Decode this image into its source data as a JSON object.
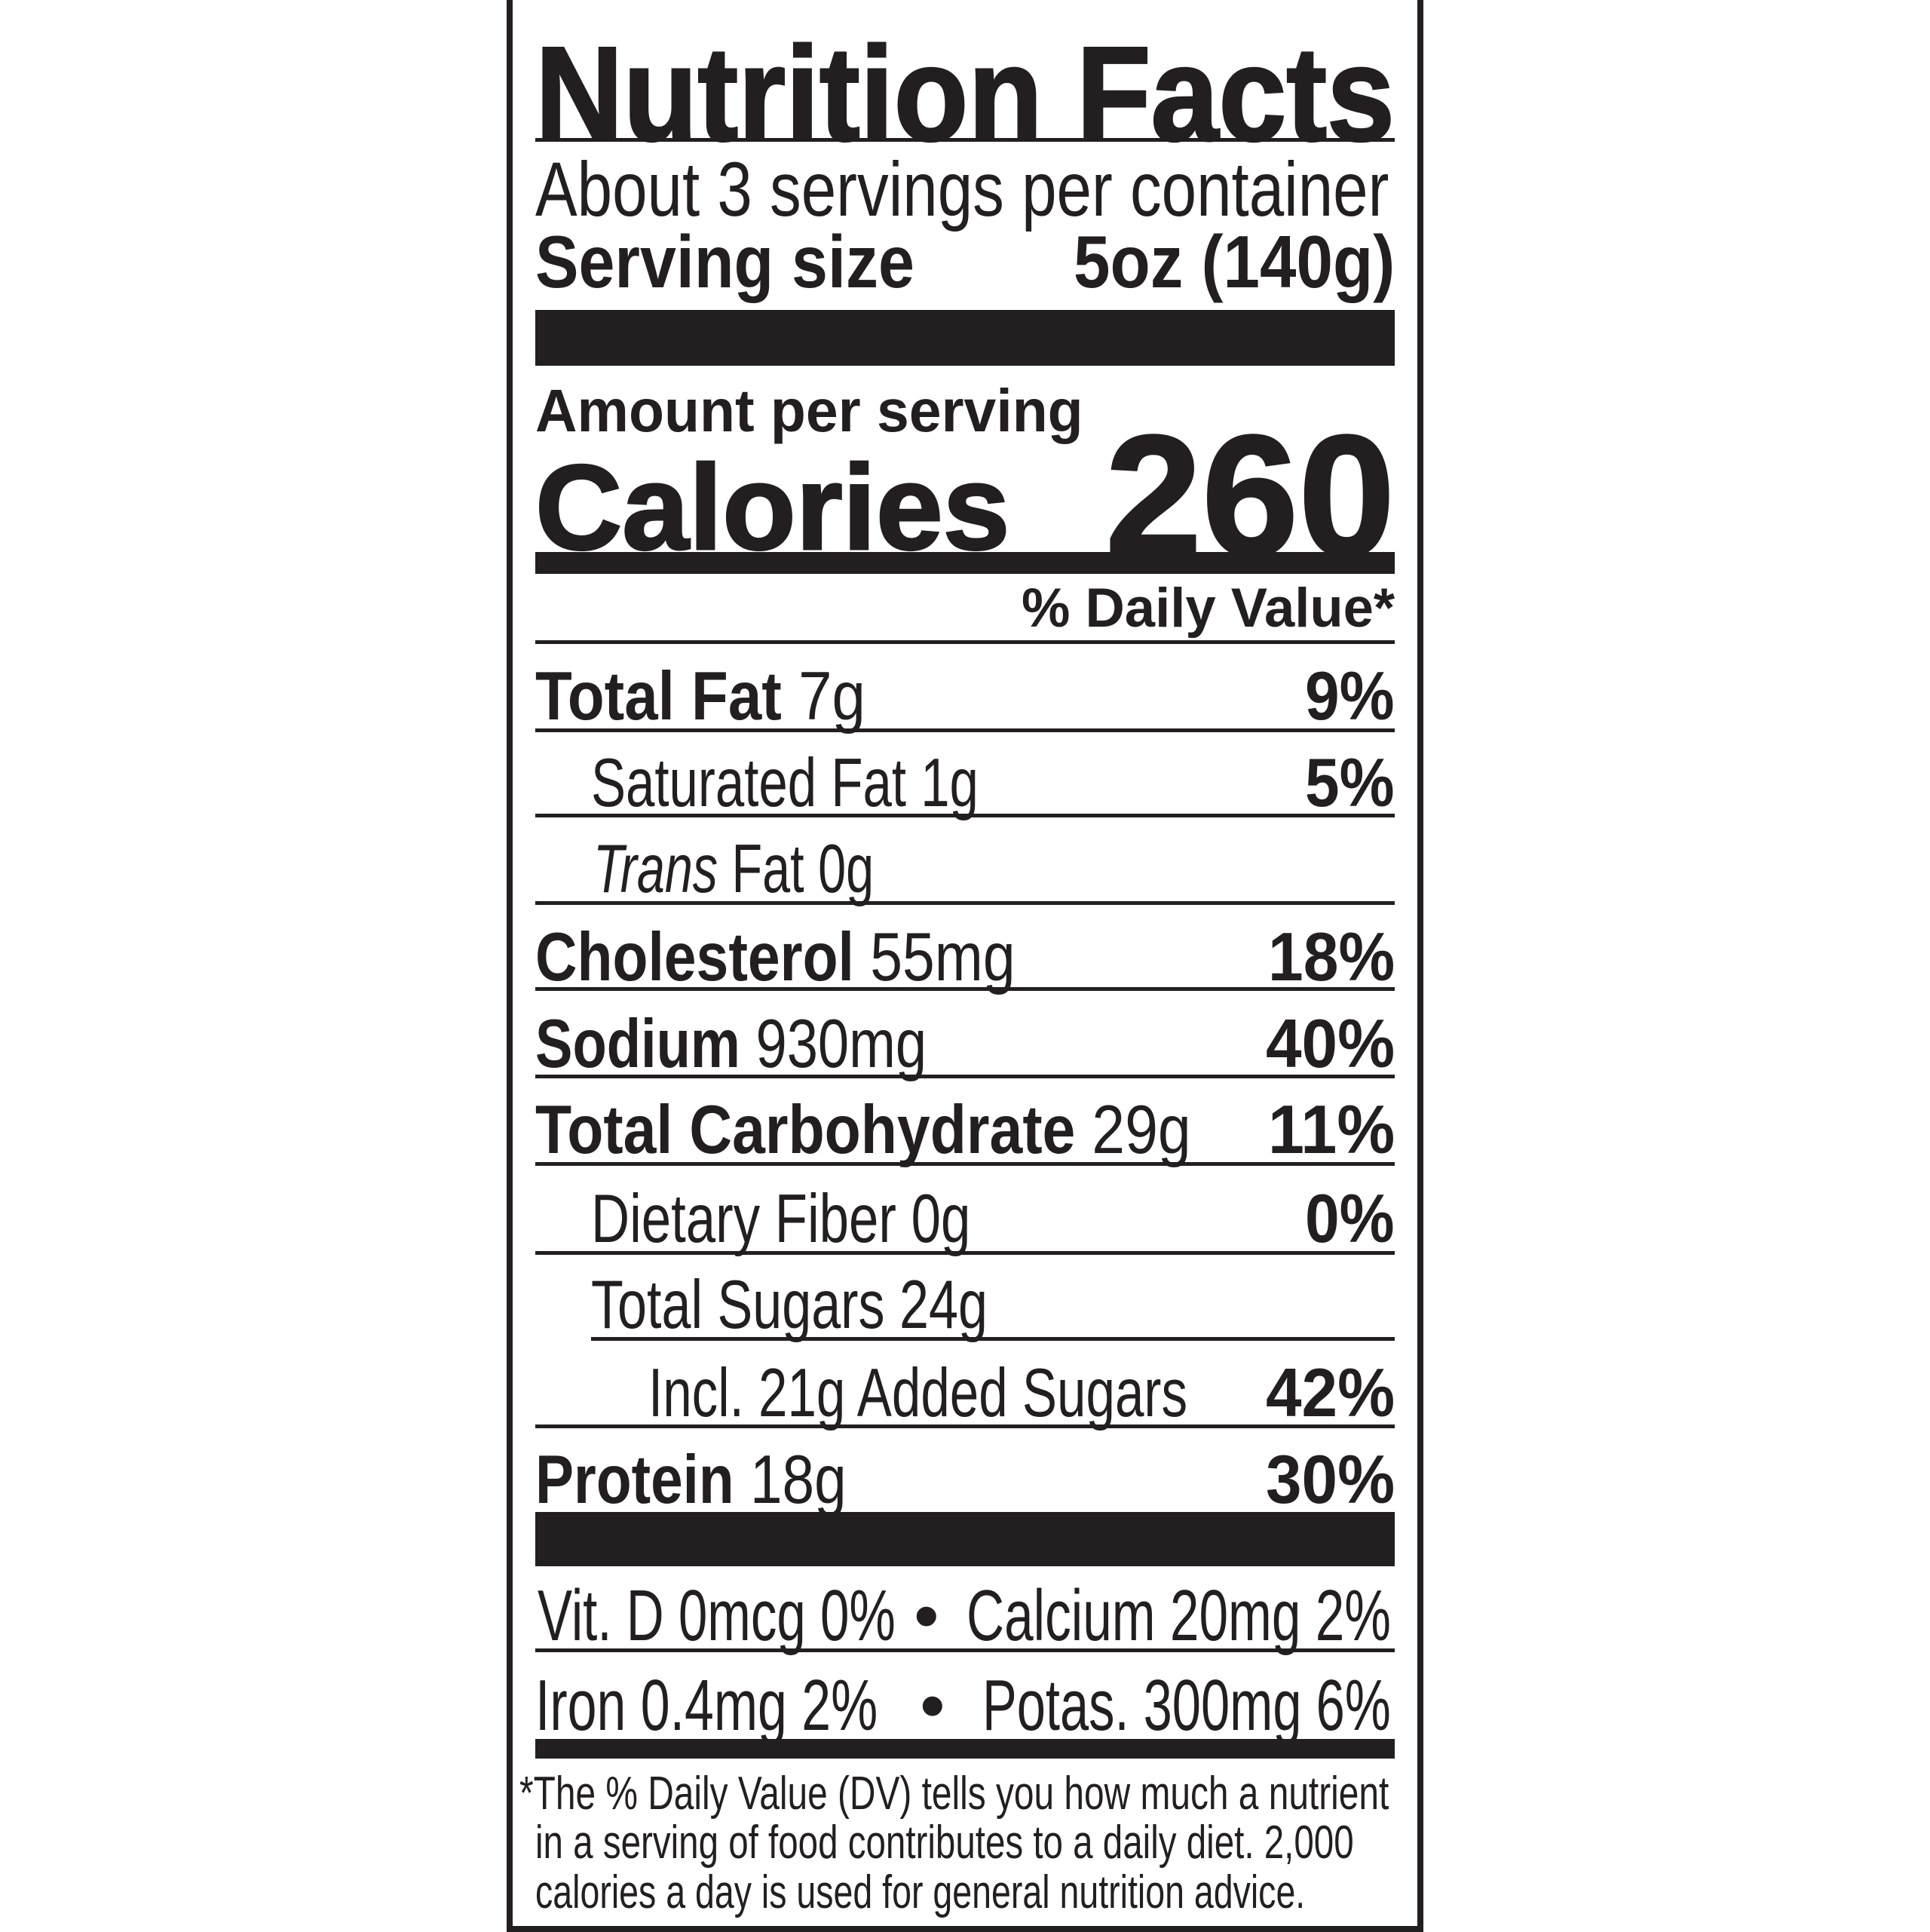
{
  "title": "Nutrition Facts",
  "servings_per_container": "About 3 servings per container",
  "serving_size": {
    "label": "Serving size",
    "value": "5oz (140g)"
  },
  "amount_per_serving": "Amount per serving",
  "calories": {
    "label": "Calories",
    "value": "260"
  },
  "daily_value_header": "% Daily Value*",
  "rows": [
    {
      "name": "Total Fat",
      "amount": "7g",
      "dv": "9%"
    },
    {
      "name": "Saturated Fat",
      "amount": "1g",
      "dv": "5%"
    },
    {
      "name": "Trans",
      "name_suffix": "Fat",
      "amount": "0g",
      "dv": ""
    },
    {
      "name": "Cholesterol",
      "amount": "55mg",
      "dv": "18%"
    },
    {
      "name": "Sodium",
      "amount": "930mg",
      "dv": "40%"
    },
    {
      "name": "Total Carbohydrate",
      "amount": "29g",
      "dv": "11%"
    },
    {
      "name": "Dietary Fiber",
      "amount": "0g",
      "dv": "0%"
    },
    {
      "name": "Total Sugars",
      "amount": "24g",
      "dv": ""
    },
    {
      "name": "Incl. 21g Added Sugars",
      "amount": "",
      "dv": "42%"
    },
    {
      "name": "Protein",
      "amount": "18g",
      "dv": "30%"
    }
  ],
  "micronutrients": [
    {
      "left": "Vit. D 0mcg 0%",
      "separator": "•",
      "right": "Calcium 20mg 2%"
    },
    {
      "left": "Iron 0.4mg 2%",
      "separator": "•",
      "right": "Potas. 300mg 6%"
    }
  ],
  "footnote": [
    "*The % Daily Value (DV) tells you how much a nutrient",
    "in a serving of food contributes to a daily diet. 2,000",
    "calories a day is used for general nutrition advice."
  ],
  "colors": {
    "ink": "#231f20",
    "background": "#ffffff"
  }
}
